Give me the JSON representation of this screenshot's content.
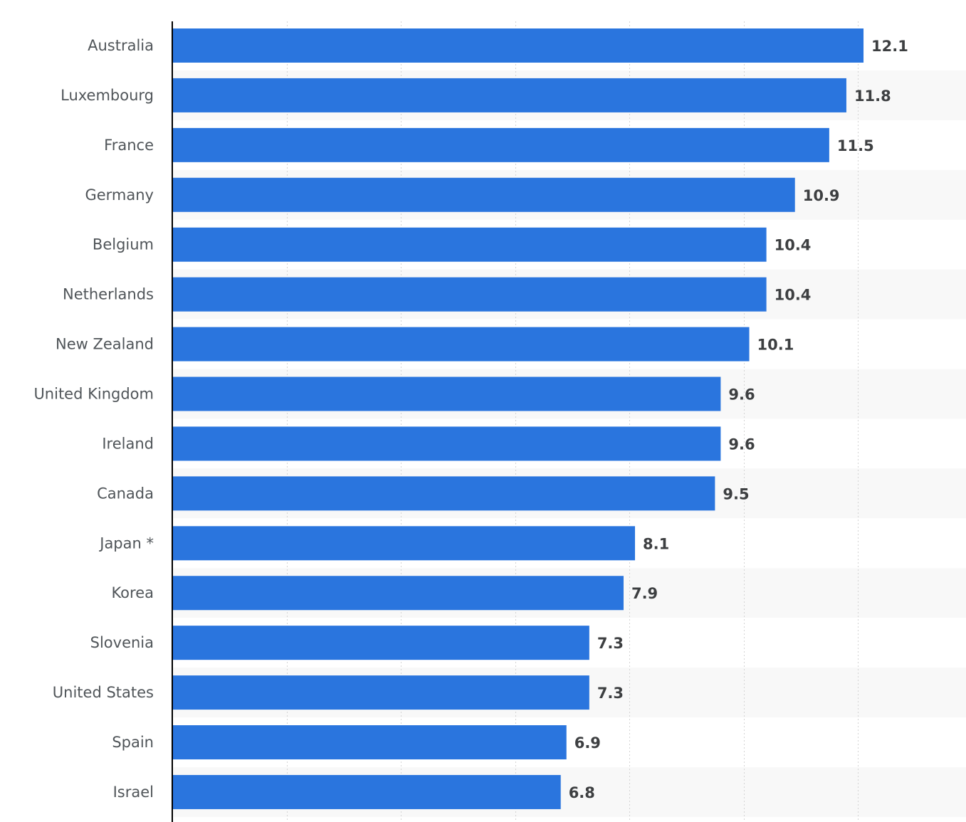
{
  "chart_data": {
    "type": "bar",
    "orientation": "horizontal",
    "categories": [
      "Australia",
      "Luxembourg",
      "France",
      "Germany",
      "Belgium",
      "Netherlands",
      "New Zealand",
      "United Kingdom",
      "Ireland",
      "Canada",
      "Japan *",
      "Korea",
      "Slovenia",
      "United States",
      "Spain",
      "Israel"
    ],
    "values": [
      12.1,
      11.8,
      11.5,
      10.9,
      10.4,
      10.4,
      10.1,
      9.6,
      9.6,
      9.5,
      8.1,
      7.9,
      7.3,
      7.3,
      6.9,
      6.8
    ],
    "value_labels": [
      "12.1",
      "11.8",
      "11.5",
      "10.9",
      "10.4",
      "10.4",
      "10.1",
      "9.6",
      "9.6",
      "9.5",
      "8.1",
      "7.9",
      "7.3",
      "7.3",
      "6.9",
      "6.8"
    ],
    "xlim": [
      0,
      14
    ],
    "x_gridlines": [
      2,
      4,
      6,
      8,
      10,
      12
    ],
    "grid": true,
    "grid_style": "dotted",
    "alternating_row_bands": true,
    "colors": {
      "bar": "#2a75de",
      "band": "#f8f8f8",
      "grid": "#d4d4d4",
      "axis": "#000000",
      "category_text": "#505559",
      "value_text": "#3d3f41"
    }
  }
}
